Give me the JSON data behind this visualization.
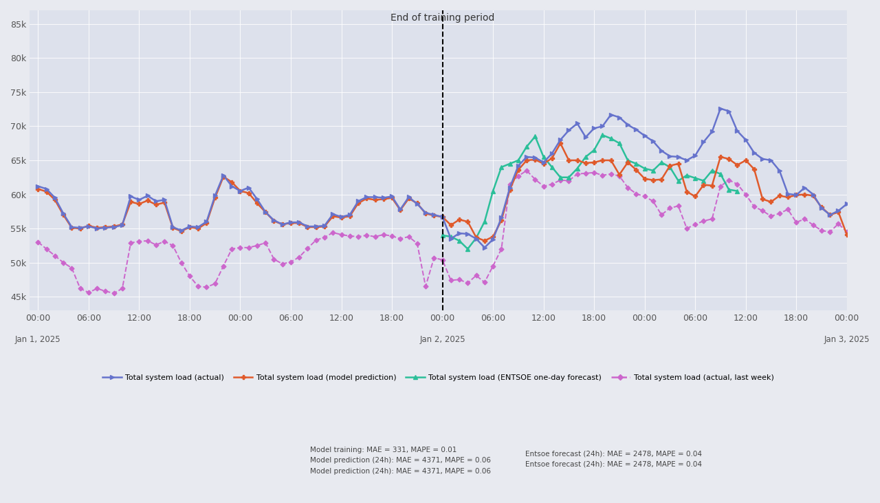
{
  "background_color": "#e8eaf0",
  "plot_bg_color": "#dde1ec",
  "title": "End of training period",
  "title_fontsize": 10,
  "tick_fontsize": 9,
  "legend_fontsize": 8,
  "ylim": [
    43000,
    87000
  ],
  "yticks": [
    45000,
    50000,
    55000,
    60000,
    65000,
    70000,
    75000,
    80000,
    85000
  ],
  "vline_x": 48,
  "colors": {
    "actual": "#6673cc",
    "model": "#e05a2b",
    "entsoe": "#2bbf99",
    "last_week": "#cc66cc"
  },
  "legend_labels": {
    "actual": "Total system load (actual)",
    "model": "Total system load (model prediction)",
    "entsoe": "Total system load (ENTSOE one-day forecast)",
    "last_week": "Total system load (actual, last week)"
  },
  "legend_sublabels": {
    "model": [
      "Model training: MAE = 331, MAPE = 0.01",
      "Model prediction (24h): MAE = 4371, MAPE = 0.06",
      "Model prediction (24h): MAE = 4371, MAPE = 0.06"
    ],
    "entsoe": [
      "Entsoe forecast (24h): MAE = 2478, MAPE = 0.04",
      "Entsoe forecast (24h): MAE = 2478, MAPE = 0.04"
    ]
  },
  "actual_y": [
    61200,
    60800,
    59500,
    57200,
    55200,
    55100,
    55300,
    55000,
    55100,
    55200,
    55500,
    59700,
    59200,
    59800,
    59000,
    59200,
    55200,
    54700,
    55300,
    55200,
    56000,
    59800,
    62800,
    61200,
    60500,
    61000,
    59300,
    57400,
    56200,
    55600,
    55900,
    55900,
    55300,
    55300,
    55400,
    57100,
    56700,
    57000,
    59000,
    59600,
    59600,
    59500,
    59700,
    57800,
    59600,
    58600,
    57300,
    57000,
    56700,
    53500,
    54300,
    54200,
    53500,
    52200,
    53400,
    56600,
    61000,
    64200,
    65500,
    65400,
    64700,
    66000,
    68000,
    69400,
    70400,
    68400,
    69700,
    70000,
    71700,
    71300,
    70200,
    69500,
    68600,
    67800,
    66400,
    65600,
    65500,
    65000,
    65700,
    67700,
    69200,
    72600,
    72200,
    69300,
    68000,
    66100,
    65200,
    65000,
    63500,
    60100,
    59900,
    61000,
    60000,
    58000,
    57000,
    57600,
    58600
  ],
  "model_y": [
    60800,
    60400,
    59200,
    57000,
    55100,
    55000,
    55400,
    55100,
    55200,
    55300,
    55600,
    58900,
    58600,
    59100,
    58500,
    58800,
    55100,
    54600,
    55200,
    55000,
    55800,
    59500,
    62600,
    61800,
    60500,
    60200,
    58700,
    57400,
    56100,
    55600,
    55800,
    55800,
    55200,
    55200,
    55300,
    56800,
    56600,
    56800,
    58700,
    59400,
    59200,
    59300,
    59500,
    57700,
    59400,
    58700,
    57200,
    56900,
    56700,
    55500,
    56300,
    56000,
    53700,
    53200,
    53800,
    56200,
    60700,
    63600,
    65000,
    65100,
    64500,
    65300,
    67500,
    65000,
    65000,
    64600,
    64700,
    65000,
    65000,
    62900,
    64700,
    63600,
    62300,
    62100,
    62200,
    64200,
    64500,
    60400,
    59700,
    61400,
    61300,
    65500,
    65200,
    64300,
    65000,
    63700,
    59300,
    58900,
    59800,
    59600,
    59900,
    60000,
    59800,
    58100,
    57000,
    57400,
    54100
  ],
  "entsoe_y": [
    null,
    null,
    null,
    null,
    null,
    null,
    null,
    null,
    null,
    null,
    null,
    null,
    null,
    null,
    null,
    null,
    null,
    null,
    null,
    null,
    null,
    null,
    null,
    null,
    null,
    null,
    null,
    null,
    null,
    null,
    null,
    null,
    null,
    null,
    null,
    null,
    null,
    null,
    null,
    null,
    null,
    null,
    null,
    null,
    null,
    null,
    null,
    null,
    54000,
    53800,
    53200,
    52000,
    53600,
    56000,
    60500,
    64000,
    64500,
    65000,
    67000,
    68500,
    65500,
    64000,
    62500,
    62500,
    63800,
    65500,
    66500,
    68700,
    68200,
    67500,
    65000,
    64500,
    63800,
    63500,
    64700,
    64000,
    62000,
    62800,
    62400,
    62000,
    63500,
    63000,
    60700,
    60500,
    null,
    null,
    null,
    null,
    null,
    null,
    null,
    null,
    null,
    null,
    null,
    null,
    null
  ],
  "last_week_y": [
    53000,
    52000,
    51000,
    50000,
    49200,
    46200,
    45600,
    46200,
    45800,
    45500,
    46200,
    52900,
    53100,
    53200,
    52600,
    53100,
    52500,
    50000,
    48000,
    46500,
    46400,
    46900,
    49500,
    52000,
    52200,
    52200,
    52500,
    52900,
    50500,
    49800,
    50100,
    50800,
    52100,
    53300,
    53700,
    54400,
    54100,
    53900,
    53800,
    54000,
    53800,
    54100,
    53900,
    53500,
    53800,
    52800,
    46500,
    50700,
    50400,
    47400,
    47500,
    47000,
    48100,
    47100,
    49500,
    52000,
    61500,
    62700,
    63500,
    62200,
    61200,
    61500,
    62100,
    62000,
    63000,
    63100,
    63200,
    62800,
    63000,
    62700,
    61000,
    60100,
    59700,
    59000,
    57000,
    58000,
    58300,
    55000,
    55600,
    56100,
    56400,
    61200,
    62100,
    61500,
    60000,
    58200,
    57600,
    56800,
    57200,
    57800,
    55900,
    56400,
    55500,
    54700,
    54500,
    55700,
    54500
  ]
}
